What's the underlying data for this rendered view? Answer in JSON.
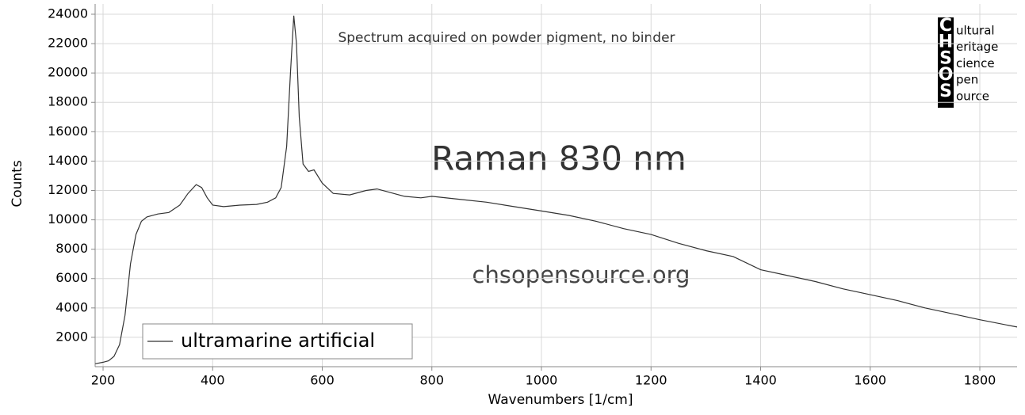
{
  "chart_data": {
    "type": "line",
    "subtitle": "Spectrum acquired on powder pigment, no binder",
    "title": "Raman 830 nm",
    "watermark": "chsopensource.org",
    "x_label": "Wavenumbers [1/cm]",
    "y_label": "Counts",
    "xlim": [
      185.5,
      1868
    ],
    "ylim": [
      0,
      24700
    ],
    "xticks": [
      200,
      400,
      600,
      800,
      1000,
      1200,
      1400,
      1600,
      1800
    ],
    "yticks": [
      2000,
      4000,
      6000,
      8000,
      10000,
      12000,
      14000,
      16000,
      18000,
      20000,
      22000,
      24000
    ],
    "grid": true,
    "legend": "bottom-left",
    "series": [
      {
        "name": "ultramarine artificial",
        "color": "#333333",
        "x": [
          186,
          200,
          210,
          220,
          230,
          240,
          250,
          260,
          270,
          280,
          300,
          320,
          340,
          355,
          370,
          380,
          390,
          400,
          420,
          450,
          480,
          500,
          515,
          525,
          535,
          542,
          548,
          553,
          558,
          565,
          575,
          585,
          600,
          620,
          650,
          680,
          700,
          720,
          750,
          780,
          800,
          850,
          900,
          950,
          1000,
          1050,
          1100,
          1150,
          1200,
          1250,
          1300,
          1350,
          1400,
          1450,
          1500,
          1550,
          1600,
          1650,
          1700,
          1750,
          1800,
          1868
        ],
        "values": [
          200,
          300,
          400,
          700,
          1500,
          3500,
          7000,
          9000,
          9900,
          10200,
          10400,
          10500,
          11000,
          11800,
          12400,
          12200,
          11500,
          11000,
          10900,
          11000,
          11050,
          11200,
          11500,
          12200,
          15000,
          20000,
          23900,
          22000,
          17000,
          13800,
          13300,
          13400,
          12500,
          11800,
          11700,
          12000,
          12100,
          11900,
          11600,
          11500,
          11600,
          11400,
          11200,
          10900,
          10600,
          10300,
          9900,
          9400,
          9000,
          8400,
          7900,
          7500,
          6600,
          6200,
          5800,
          5300,
          4900,
          4500,
          4000,
          3600,
          3200,
          2700
        ]
      }
    ]
  },
  "logo": {
    "letters": [
      "C",
      "H",
      "S",
      "O",
      "S"
    ],
    "words": [
      "ultural",
      "eritage",
      "cience",
      "pen",
      "ource"
    ]
  }
}
